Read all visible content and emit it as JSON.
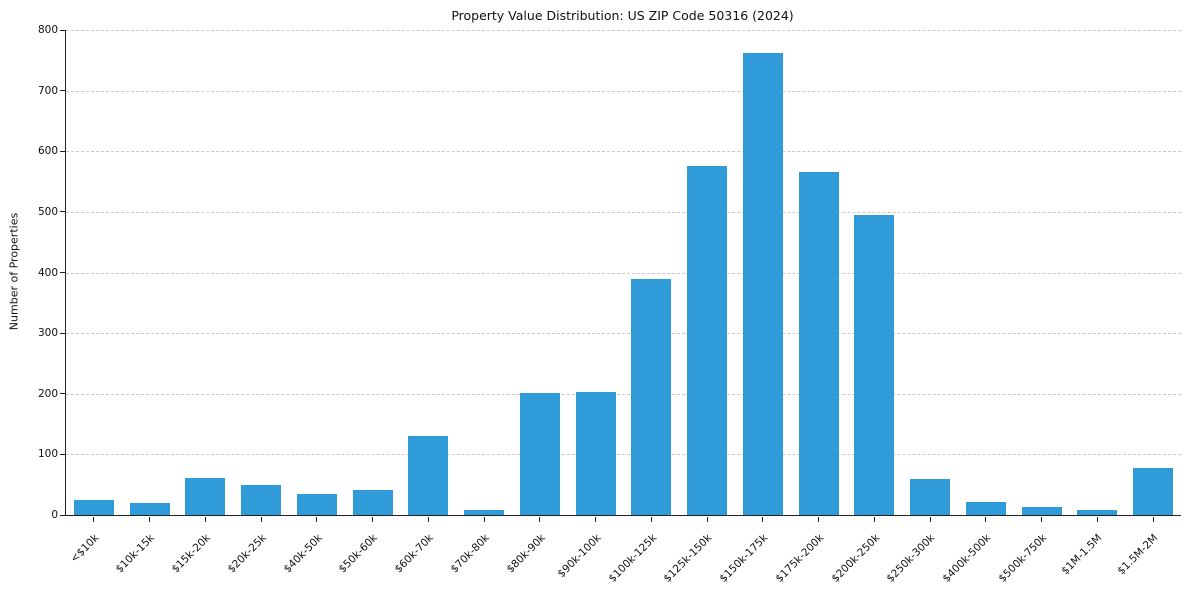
{
  "chart_data": {
    "type": "bar",
    "title": "Property Value Distribution: US ZIP Code 50316 (2024)",
    "xlabel": "",
    "ylabel": "Number of Properties",
    "categories": [
      "<$10k",
      "$10k-15k",
      "$15k-20k",
      "$20k-25k",
      "$40k-50k",
      "$50k-60k",
      "$60k-70k",
      "$70k-80k",
      "$80k-90k",
      "$90k-100k",
      "$100k-125k",
      "$125k-150k",
      "$150k-175k",
      "$175k-200k",
      "$200k-250k",
      "$250k-300k",
      "$400k-500k",
      "$500k-750k",
      "$1M-1.5M",
      "$1.5M-2M"
    ],
    "values": [
      25,
      20,
      61,
      50,
      34,
      41,
      131,
      8,
      201,
      203,
      390,
      575,
      762,
      565,
      495,
      60,
      22,
      14,
      8,
      77
    ],
    "ylim": [
      0,
      800
    ],
    "ytick_step": 100,
    "grid": "horizontal-dashed",
    "legend": "none",
    "bar_color": "#2f9bd8"
  }
}
